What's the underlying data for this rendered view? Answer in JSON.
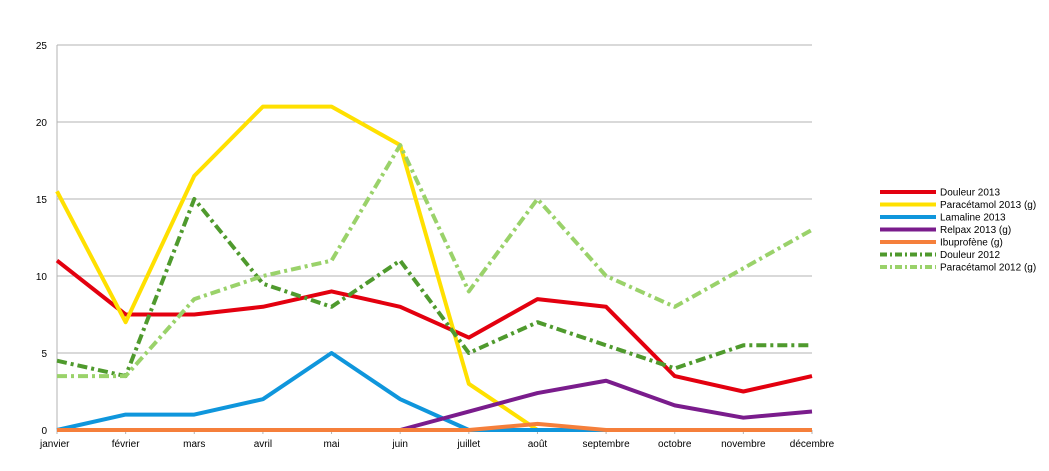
{
  "chart_data": {
    "type": "line",
    "title": "",
    "xlabel": "",
    "ylabel": "",
    "categories": [
      "janvier",
      "février",
      "mars",
      "avril",
      "mai",
      "juin",
      "juillet",
      "août",
      "septembre",
      "octobre",
      "novembre",
      "décembre"
    ],
    "ylim": [
      0,
      25
    ],
    "yticks": [
      0,
      5,
      10,
      15,
      20,
      25
    ],
    "grid": true,
    "legend_position": "right",
    "series": [
      {
        "name": "Douleur 2013",
        "color": "#e3000f",
        "dash": "solid",
        "values": [
          11,
          7.5,
          7.5,
          8,
          9,
          8,
          6,
          8.5,
          8,
          3.5,
          2.5,
          3.5
        ]
      },
      {
        "name": "Paracétamol 2013 (g)",
        "color": "#ffe000",
        "dash": "solid",
        "values": [
          15.5,
          7,
          16.5,
          21,
          21,
          18.5,
          3,
          0,
          0,
          0,
          0,
          0
        ]
      },
      {
        "name": "Lamaline  2013",
        "color": "#0f96dc",
        "dash": "solid",
        "values": [
          0,
          1,
          1,
          2,
          5,
          2,
          0,
          0,
          0,
          0,
          0,
          0
        ]
      },
      {
        "name": "Relpax 2013 (g)",
        "color": "#7a1c8c",
        "dash": "solid",
        "values": [
          0,
          0,
          0,
          0,
          0,
          0,
          1.2,
          2.4,
          3.2,
          1.6,
          0.8,
          1.2
        ]
      },
      {
        "name": "Ibuprofène (g)",
        "color": "#f57f3b",
        "dash": "solid",
        "values": [
          0,
          0,
          0,
          0,
          0,
          0,
          0,
          0.4,
          0,
          0,
          0,
          0
        ]
      },
      {
        "name": "Douleur 2012",
        "color": "#4f9a2d",
        "dash": "dashdot",
        "values": [
          4.5,
          3.5,
          15,
          9.5,
          8,
          11,
          5,
          7,
          5.5,
          4,
          5.5,
          5.5
        ]
      },
      {
        "name": "Paracétamol 2012 (g)",
        "color": "#9ad26a",
        "dash": "dashdot",
        "values": [
          3.5,
          3.5,
          8.5,
          10,
          11,
          18.5,
          9,
          15,
          10,
          8,
          10.5,
          13
        ]
      }
    ]
  }
}
